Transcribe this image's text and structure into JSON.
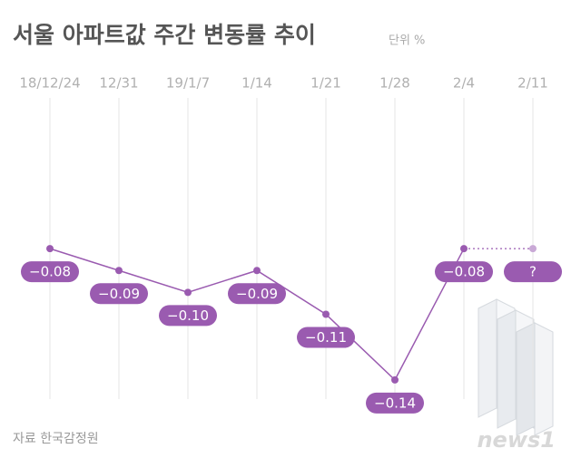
{
  "chart_data": {
    "type": "line",
    "title": "서울 아파트값 주간 변동률 추이",
    "unit": "단위 %",
    "source": "자료  한국감정원",
    "logo": "news1",
    "categories": [
      "18/12/24",
      "12/31",
      "19/1/7",
      "1/14",
      "1/21",
      "1/28",
      "2/4",
      "2/11"
    ],
    "values": [
      -0.08,
      -0.09,
      -0.1,
      -0.09,
      -0.11,
      -0.14,
      -0.08,
      null
    ],
    "value_labels": [
      "−0.08",
      "−0.09",
      "−0.10",
      "−0.09",
      "−0.11",
      "−0.14",
      "−0.08",
      "?"
    ],
    "color": "#9a5bb0",
    "ylim": [
      -0.15,
      -0.07
    ],
    "grid": true
  }
}
